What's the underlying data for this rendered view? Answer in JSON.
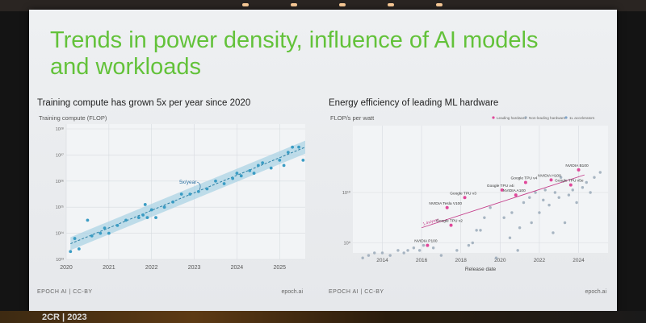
{
  "slide": {
    "title_line1": "Trends in power density, influence of AI models",
    "title_line2": "and workloads"
  },
  "bottom_text": "2CR | 2023",
  "chart_data": [
    {
      "type": "scatter",
      "title": "Training compute has grown 5x per year since 2020",
      "ylabel": "Training compute (FLOP)",
      "xlabel": "",
      "log_y": true,
      "xlim": [
        2020,
        2025.6
      ],
      "ylim_exp": [
        23,
        28
      ],
      "x_ticks": [
        "2020",
        "2021",
        "2022",
        "2023",
        "2024",
        "2025"
      ],
      "y_tick_exponents": [
        23,
        24,
        25,
        26,
        27,
        28
      ],
      "annotation": "5x/year",
      "trend": {
        "x": [
          2020.1,
          2025.6
        ],
        "log_y": [
          23.6,
          27.3
        ]
      },
      "points": [
        [
          2020.1,
          23.3
        ],
        [
          2020.2,
          23.8
        ],
        [
          2020.3,
          23.4
        ],
        [
          2020.5,
          24.5
        ],
        [
          2020.6,
          23.9
        ],
        [
          2020.8,
          24.0
        ],
        [
          2020.9,
          24.2
        ],
        [
          2021.0,
          24.0
        ],
        [
          2021.2,
          24.3
        ],
        [
          2021.4,
          24.5
        ],
        [
          2021.7,
          24.6
        ],
        [
          2021.8,
          24.7
        ],
        [
          2021.85,
          25.1
        ],
        [
          2021.9,
          24.6
        ],
        [
          2022.0,
          24.9
        ],
        [
          2022.1,
          24.6
        ],
        [
          2022.3,
          25.0
        ],
        [
          2022.5,
          25.2
        ],
        [
          2022.7,
          25.5
        ],
        [
          2022.9,
          25.5
        ],
        [
          2023.1,
          25.6
        ],
        [
          2023.3,
          25.7
        ],
        [
          2023.5,
          26.0
        ],
        [
          2023.7,
          25.9
        ],
        [
          2023.9,
          26.1
        ],
        [
          2024.0,
          26.3
        ],
        [
          2024.1,
          26.2
        ],
        [
          2024.3,
          26.4
        ],
        [
          2024.4,
          26.3
        ],
        [
          2024.5,
          26.6
        ],
        [
          2024.6,
          26.7
        ],
        [
          2024.8,
          26.5
        ],
        [
          2025.0,
          26.8
        ],
        [
          2025.1,
          26.6
        ],
        [
          2025.2,
          27.1
        ],
        [
          2025.3,
          27.3
        ],
        [
          2025.45,
          27.3
        ],
        [
          2025.55,
          26.8
        ]
      ],
      "source": "EPOCH AI | CC-BY",
      "site": "epoch.ai",
      "colors": {
        "points": "#3a9cc4",
        "band": "#a8d2e4",
        "trend": "#2b7fa4"
      }
    },
    {
      "type": "scatter",
      "title": "Energy efficiency of leading ML hardware",
      "ylabel": "FLOP/s per watt",
      "xlabel": "Release date",
      "log_y": true,
      "xlim": [
        2012.5,
        2025.5
      ],
      "ylim_exp": [
        8.8,
        11.2
      ],
      "x_ticks": [
        "2014",
        "2016",
        "2018",
        "2020",
        "2022",
        "2024"
      ],
      "y_tick_labels": [
        {
          "exp": 9,
          "label": "10⁹"
        },
        {
          "exp": 10,
          "label": "10¹⁰"
        }
      ],
      "legend": [
        "Leading hardware",
        "Non-leading hardware",
        "1L accelerators"
      ],
      "legend_position": "top-right",
      "trend_label": "1.4x/year",
      "trend": {
        "x": [
          2016.0,
          2024.3
        ],
        "log_y": [
          9.3,
          10.35
        ]
      },
      "leading_points": [
        {
          "x": 2016.3,
          "y": 8.95,
          "label": "NVIDIA P100"
        },
        {
          "x": 2017.3,
          "y": 9.7,
          "label": "NVIDIA Tesla V100"
        },
        {
          "x": 2017.5,
          "y": 9.35,
          "label": "Google TPU v2"
        },
        {
          "x": 2018.2,
          "y": 9.9,
          "label": "Google TPU v3"
        },
        {
          "x": 2020.1,
          "y": 10.05,
          "label": "Google TPU v4i"
        },
        {
          "x": 2020.8,
          "y": 9.95,
          "label": "NVIDIA A100"
        },
        {
          "x": 2021.3,
          "y": 10.2,
          "label": "Google TPU v4"
        },
        {
          "x": 2022.6,
          "y": 10.25,
          "label": "NVIDIA H100"
        },
        {
          "x": 2023.6,
          "y": 10.15,
          "label": "Google TPU v5e"
        },
        {
          "x": 2024.0,
          "y": 10.45,
          "label": "NVIDIA B100"
        }
      ],
      "other_points": [
        [
          2013.0,
          8.7
        ],
        [
          2013.3,
          8.75
        ],
        [
          2013.6,
          8.8
        ],
        [
          2014.0,
          8.8
        ],
        [
          2014.4,
          8.75
        ],
        [
          2014.8,
          8.85
        ],
        [
          2015.1,
          8.8
        ],
        [
          2015.3,
          8.85
        ],
        [
          2015.6,
          8.9
        ],
        [
          2015.9,
          8.85
        ],
        [
          2016.1,
          8.95
        ],
        [
          2016.6,
          8.9
        ],
        [
          2017.0,
          8.75
        ],
        [
          2017.8,
          8.85
        ],
        [
          2018.4,
          8.95
        ],
        [
          2018.6,
          9.0
        ],
        [
          2018.8,
          9.25
        ],
        [
          2019.0,
          9.25
        ],
        [
          2019.2,
          9.5
        ],
        [
          2019.5,
          9.7
        ],
        [
          2019.8,
          8.7
        ],
        [
          2020.2,
          9.5
        ],
        [
          2020.5,
          9.1
        ],
        [
          2020.6,
          9.6
        ],
        [
          2020.9,
          8.85
        ],
        [
          2021.0,
          9.3
        ],
        [
          2021.2,
          9.8
        ],
        [
          2021.5,
          9.9
        ],
        [
          2021.6,
          9.4
        ],
        [
          2021.8,
          10.0
        ],
        [
          2022.0,
          9.6
        ],
        [
          2022.2,
          9.85
        ],
        [
          2022.3,
          10.05
        ],
        [
          2022.5,
          9.75
        ],
        [
          2022.7,
          9.2
        ],
        [
          2022.8,
          10.0
        ],
        [
          2023.0,
          9.9
        ],
        [
          2023.1,
          10.3
        ],
        [
          2023.3,
          9.4
        ],
        [
          2023.5,
          9.95
        ],
        [
          2023.7,
          10.05
        ],
        [
          2023.9,
          9.8
        ],
        [
          2024.2,
          10.1
        ],
        [
          2024.4,
          10.2
        ],
        [
          2024.6,
          10.0
        ],
        [
          2024.8,
          10.3
        ],
        [
          2025.1,
          10.4
        ]
      ],
      "source": "EPOCH AI | CC-BY",
      "site": "epoch.ai",
      "colors": {
        "leading": "#e0489a",
        "other": "#9aa9b8",
        "trend": "#c43d8a",
        "legend_third": "#7fa3c9"
      }
    }
  ]
}
